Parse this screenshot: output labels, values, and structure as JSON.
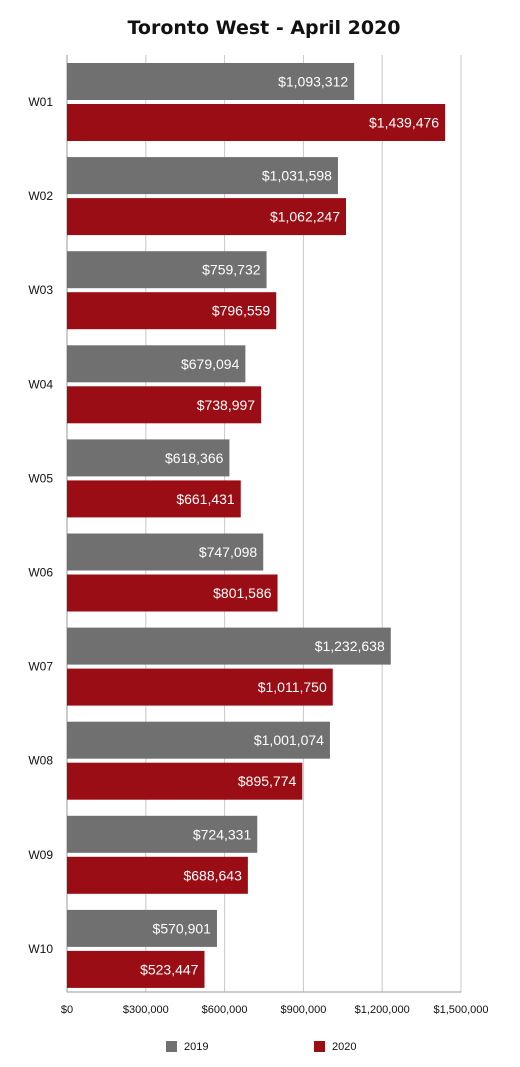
{
  "chart_data": {
    "type": "bar",
    "orientation": "horizontal",
    "title": "Toronto West - April 2020",
    "categories": [
      "W01",
      "W02",
      "W03",
      "W04",
      "W05",
      "W06",
      "W07",
      "W08",
      "W09",
      "W10"
    ],
    "series": [
      {
        "name": "2019",
        "color": "#6f706f",
        "values": [
          1093312,
          1031598,
          759732,
          679094,
          618366,
          747098,
          1232638,
          1001074,
          724331,
          570901
        ],
        "labels": [
          "$1,093,312",
          "$1,031,598",
          "$759,732",
          "$679,094",
          "$618,366",
          "$747,098",
          "$1,232,638",
          "$1,001,074",
          "$724,331",
          "$570,901"
        ]
      },
      {
        "name": "2020",
        "color": "#9b0d14",
        "values": [
          1439476,
          1062247,
          796559,
          738997,
          661431,
          801586,
          1011750,
          895774,
          688643,
          523447
        ],
        "labels": [
          "$1,439,476",
          "$1,062,247",
          "$796,559",
          "$738,997",
          "$661,431",
          "$801,586",
          "$1,011,750",
          "$895,774",
          "$688,643",
          "$523,447"
        ]
      }
    ],
    "xlim": [
      0,
      1500000
    ],
    "xticks": [
      0,
      300000,
      600000,
      900000,
      1200000,
      1500000
    ],
    "xtick_labels": [
      "$0",
      "$300,000",
      "$600,000",
      "$900,000",
      "$1,200,000",
      "$1,500,000"
    ],
    "grid": "vertical",
    "legend_position": "bottom"
  }
}
